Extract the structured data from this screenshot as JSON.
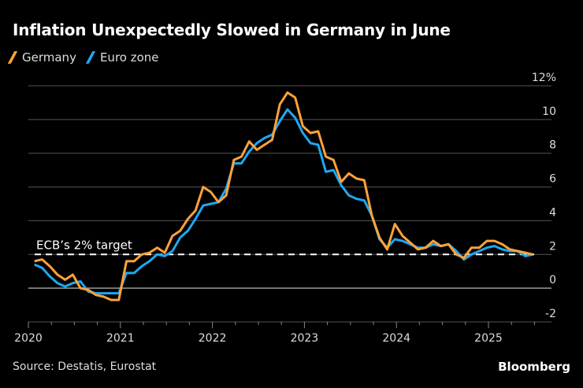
{
  "title": "Inflation Unexpectedly Slowed in Germany in June",
  "source": "Source: Destatis, Eurostat",
  "brand": "Bloomberg",
  "legend": [
    {
      "label": "Germany",
      "color": "#FBA23B"
    },
    {
      "label": "Euro zone",
      "color": "#1DA8F2"
    }
  ],
  "chart_data": {
    "type": "line",
    "title": "Inflation Unexpectedly Slowed in Germany in June",
    "xlabel": "",
    "ylabel": "",
    "ylim": [
      -2,
      12
    ],
    "yticks": [
      12,
      10,
      8,
      6,
      4,
      2,
      0,
      -2
    ],
    "ytick_labels": [
      "12%",
      "10",
      "8",
      "6",
      "4",
      "2",
      "0",
      "-2"
    ],
    "xticks": [
      "2020",
      "2021",
      "2022",
      "2023",
      "2024",
      "2025"
    ],
    "x_start": "2020-01",
    "x_end": "2025-06",
    "frequency": "monthly",
    "annotation": {
      "label": "ECB’s 2% target",
      "y": 2
    },
    "grid": true,
    "legend_position": "top-left",
    "series": [
      {
        "name": "Germany",
        "color": "#FBA23B",
        "values": [
          1.6,
          1.7,
          1.3,
          0.8,
          0.5,
          0.8,
          0.0,
          -0.1,
          -0.4,
          -0.5,
          -0.7,
          -0.7,
          1.6,
          1.6,
          2.0,
          2.1,
          2.4,
          2.1,
          3.1,
          3.4,
          4.1,
          4.6,
          6.0,
          5.7,
          5.1,
          5.5,
          7.6,
          7.8,
          8.7,
          8.2,
          8.5,
          8.8,
          10.9,
          11.6,
          11.3,
          9.6,
          9.2,
          9.3,
          7.8,
          7.6,
          6.3,
          6.8,
          6.5,
          6.4,
          4.3,
          3.0,
          2.3,
          3.8,
          3.1,
          2.7,
          2.3,
          2.4,
          2.8,
          2.5,
          2.6,
          2.0,
          1.8,
          2.4,
          2.4,
          2.8,
          2.8,
          2.6,
          2.3,
          2.2,
          2.1,
          2.0
        ]
      },
      {
        "name": "Euro zone",
        "color": "#1DA8F2",
        "values": [
          1.4,
          1.2,
          0.7,
          0.3,
          0.1,
          0.3,
          0.4,
          -0.2,
          -0.3,
          -0.3,
          -0.3,
          -0.3,
          0.9,
          0.9,
          1.3,
          1.6,
          2.0,
          1.9,
          2.2,
          3.0,
          3.4,
          4.1,
          4.9,
          5.0,
          5.1,
          5.9,
          7.4,
          7.4,
          8.1,
          8.6,
          8.9,
          9.1,
          9.9,
          10.6,
          10.1,
          9.2,
          8.6,
          8.5,
          6.9,
          7.0,
          6.1,
          5.5,
          5.3,
          5.2,
          4.3,
          2.9,
          2.4,
          2.9,
          2.8,
          2.6,
          2.4,
          2.4,
          2.6,
          2.5,
          2.6,
          2.2,
          1.7,
          2.0,
          2.2,
          2.4,
          2.5,
          2.3,
          2.2,
          2.2,
          1.9,
          2.0
        ]
      }
    ]
  }
}
